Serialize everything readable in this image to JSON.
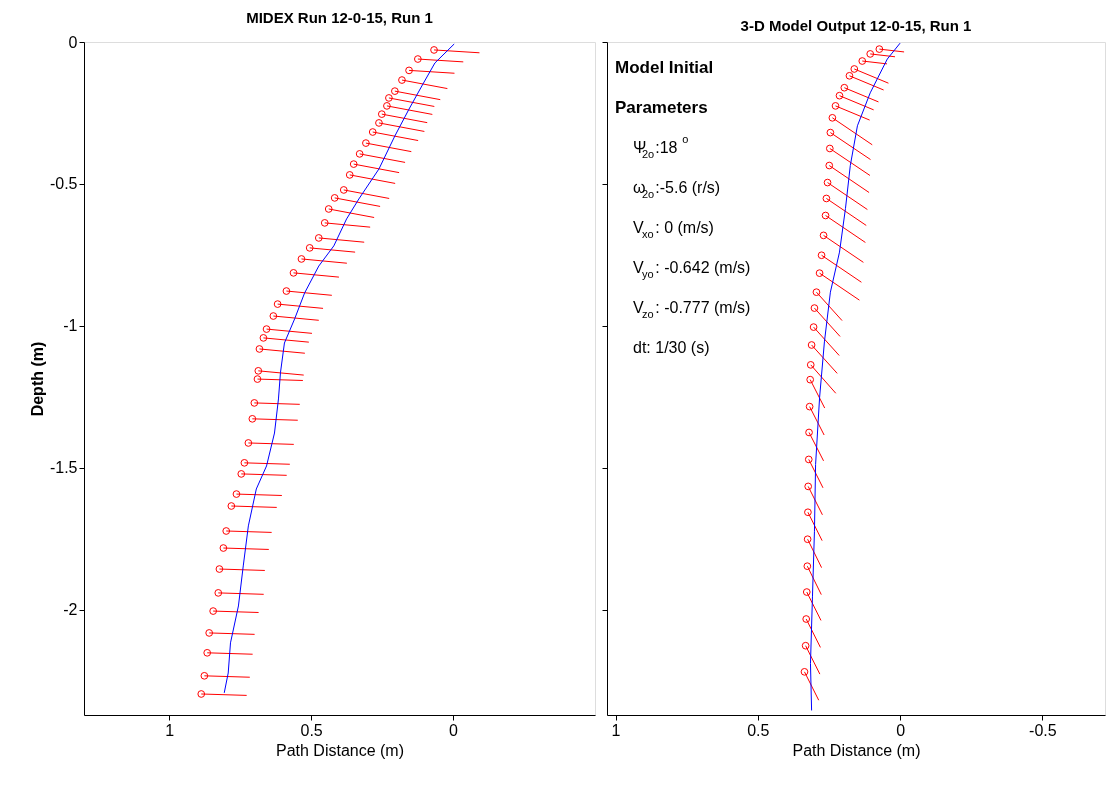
{
  "chart_data": [
    {
      "type": "line",
      "title": "MIDEX Run 12-0-15, Run 1",
      "xlabel": "Path Distance (m)",
      "ylabel": "Depth (m)",
      "xlim": [
        1.3,
        -0.5
      ],
      "xticks": [
        1,
        0.5,
        0
      ],
      "ylim": [
        -2.37,
        0
      ],
      "yticks": [
        0,
        -0.5,
        -1,
        -1.5,
        -2
      ],
      "grid": false,
      "series": [
        {
          "color": "#ff0000",
          "x": [
            0.067,
            -0.093,
            null,
            0.124,
            -0.036,
            null,
            0.155,
            -0.005,
            null,
            0.18,
            0.02,
            null,
            0.205,
            0.045,
            null,
            0.226,
            0.066,
            null,
            0.233,
            0.073,
            null,
            0.251,
            0.091,
            null,
            0.261,
            0.101,
            null,
            0.283,
            0.123,
            null,
            0.307,
            0.147,
            null,
            0.329,
            0.169,
            null,
            0.35,
            0.19,
            null,
            0.364,
            0.204,
            null,
            0.385,
            0.225,
            null,
            0.417,
            0.257,
            null,
            0.438,
            0.278,
            null,
            0.452,
            0.292,
            null,
            0.473,
            0.313,
            null,
            0.505,
            0.345,
            null,
            0.534,
            0.374,
            null,
            0.562,
            0.402,
            null,
            0.587,
            0.427,
            null,
            0.618,
            0.458,
            null,
            0.633,
            0.473,
            null,
            0.657,
            0.497,
            null,
            0.668,
            0.508,
            null,
            0.682,
            0.522,
            null,
            0.686,
            0.526,
            null,
            0.689,
            0.529,
            null,
            0.7,
            0.54,
            null,
            0.707,
            0.547,
            null,
            0.721,
            0.561,
            null,
            0.735,
            0.575,
            null,
            0.746,
            0.586,
            null,
            0.763,
            0.603,
            null,
            0.781,
            0.621,
            null,
            0.799,
            0.639,
            null,
            0.809,
            0.649,
            null,
            0.823,
            0.663,
            null,
            0.827,
            0.667,
            null,
            0.845,
            0.685,
            null,
            0.859,
            0.699,
            null,
            0.866,
            0.706,
            null,
            0.876,
            0.716,
            null,
            0.887,
            0.727
          ],
          "values": [
            -0.028,
            -0.038,
            null,
            -0.06,
            -0.07,
            null,
            -0.1,
            -0.11,
            null,
            -0.134,
            -0.164,
            null,
            -0.173,
            -0.203,
            null,
            -0.197,
            -0.227,
            null,
            -0.225,
            -0.255,
            null,
            -0.254,
            -0.284,
            null,
            -0.285,
            -0.315,
            null,
            -0.317,
            -0.347,
            null,
            -0.356,
            -0.386,
            null,
            -0.394,
            -0.424,
            null,
            -0.43,
            -0.46,
            null,
            -0.468,
            -0.498,
            null,
            -0.521,
            -0.551,
            null,
            -0.549,
            -0.579,
            null,
            -0.588,
            -0.618,
            null,
            -0.637,
            -0.652,
            null,
            -0.69,
            -0.705,
            null,
            -0.725,
            -0.74,
            null,
            -0.764,
            -0.779,
            null,
            -0.813,
            -0.828,
            null,
            -0.877,
            -0.892,
            null,
            -0.923,
            -0.938,
            null,
            -0.965,
            -0.98,
            null,
            -1.011,
            -1.026,
            null,
            -1.042,
            -1.057,
            null,
            -1.081,
            -1.096,
            null,
            -1.158,
            -1.173,
            null,
            -1.187,
            -1.192,
            null,
            -1.271,
            -1.276,
            null,
            -1.327,
            -1.332,
            null,
            -1.412,
            -1.417,
            null,
            -1.482,
            -1.487,
            null,
            -1.521,
            -1.526,
            null,
            -1.592,
            -1.597,
            null,
            -1.634,
            -1.639,
            null,
            -1.722,
            -1.727,
            null,
            -1.782,
            -1.787,
            null,
            -1.856,
            -1.861,
            null,
            -1.94,
            -1.945,
            null,
            -2.004,
            -2.009,
            null,
            -2.081,
            -2.086,
            null,
            -2.151,
            -2.156,
            null,
            -2.232,
            -2.237,
            null,
            -2.296,
            -2.301
          ]
        },
        {
          "type": "scatter",
          "marker": "circle",
          "color": "#ff0000",
          "x": [
            0.067,
            0.124,
            0.155,
            0.18,
            0.205,
            0.226,
            0.233,
            0.251,
            0.261,
            0.283,
            0.307,
            0.329,
            0.35,
            0.364,
            0.385,
            0.417,
            0.438,
            0.452,
            0.473,
            0.505,
            0.534,
            0.562,
            0.587,
            0.618,
            0.633,
            0.657,
            0.668,
            0.682,
            0.686,
            0.689,
            0.7,
            0.707,
            0.721,
            0.735,
            0.746,
            0.763,
            0.781,
            0.799,
            0.809,
            0.823,
            0.827,
            0.845,
            0.859,
            0.866,
            0.876,
            0.887
          ],
          "values": [
            -0.028,
            -0.06,
            -0.1,
            -0.134,
            -0.173,
            -0.197,
            -0.225,
            -0.254,
            -0.285,
            -0.317,
            -0.356,
            -0.394,
            -0.43,
            -0.468,
            -0.521,
            -0.549,
            -0.588,
            -0.637,
            -0.69,
            -0.725,
            -0.764,
            -0.813,
            -0.877,
            -0.923,
            -0.965,
            -1.011,
            -1.042,
            -1.081,
            -1.158,
            -1.187,
            -1.271,
            -1.327,
            -1.412,
            -1.482,
            -1.521,
            -1.592,
            -1.634,
            -1.722,
            -1.782,
            -1.856,
            -1.94,
            -2.004,
            -2.081,
            -2.151,
            -2.232,
            -2.296
          ]
        },
        {
          "color": "#0000ff",
          "x": [
            -0.004,
            0.064,
            0.11,
            0.155,
            0.205,
            0.261,
            0.332,
            0.375,
            0.42,
            0.473,
            0.523,
            0.558,
            0.594,
            0.608,
            0.615,
            0.629,
            0.657,
            0.693,
            0.721,
            0.739,
            0.756,
            0.784,
            0.792,
            0.806
          ],
          "values": [
            -0.007,
            -0.074,
            -0.155,
            -0.236,
            -0.331,
            -0.447,
            -0.553,
            -0.623,
            -0.718,
            -0.789,
            -0.884,
            -0.975,
            -1.06,
            -1.165,
            -1.257,
            -1.377,
            -1.493,
            -1.574,
            -1.704,
            -1.845,
            -1.986,
            -2.116,
            -2.222,
            -2.292
          ]
        }
      ]
    },
    {
      "type": "line",
      "title": "3-D Model Output 12-0-15, Run 1",
      "xlabel": "Path Distance (m)",
      "xlim": [
        1.03,
        -0.72
      ],
      "xticks": [
        1,
        0.5,
        0,
        -0.5
      ],
      "ylim": [
        -2.37,
        0
      ],
      "yticks": [
        0,
        -0.5,
        -1,
        -1.5,
        -2
      ],
      "tick_labels": "x",
      "grid": false,
      "annotations": [
        "Model Initial",
        "Parameters",
        "Ψ$_{2o}$:18$^{o}$",
        "ω$_{2o}$:-5.6 (r/s)",
        "V$_{xo}$: 0 (m/s)",
        "V$_{yo}$: -0.642 (m/s)",
        "V$_{zo}$: -0.777 (m/s)",
        "dt:  1/30 (s)"
      ],
      "series": [
        {
          "color": "#ff0000",
          "x": [
            0.073,
            -0.014,
            null,
            0.105,
            0.018,
            null,
            0.133,
            0.046,
            null,
            0.161,
            0.041,
            null,
            0.178,
            0.058,
            null,
            0.196,
            0.076,
            null,
            0.213,
            0.093,
            null,
            0.227,
            0.107,
            null,
            0.238,
            0.098,
            null,
            0.245,
            0.104,
            null,
            0.247,
            0.106,
            null,
            0.249,
            0.109,
            null,
            0.255,
            0.115,
            null,
            0.259,
            0.119,
            null,
            0.262,
            0.122,
            null,
            0.269,
            0.129,
            null,
            0.276,
            0.136,
            null,
            0.283,
            0.143,
            null,
            0.294,
            0.204,
            null,
            0.301,
            0.211,
            null,
            0.304,
            0.214,
            null,
            0.311,
            0.221,
            null,
            0.314,
            0.226
          ],
          "values": [
            -0.025,
            -0.035,
            null,
            -0.042,
            -0.052,
            null,
            -0.067,
            -0.077,
            null,
            -0.095,
            -0.145,
            null,
            -0.119,
            -0.169,
            null,
            -0.161,
            -0.211,
            null,
            -0.189,
            -0.239,
            null,
            -0.225,
            -0.275,
            null,
            -0.267,
            -0.362,
            null,
            -0.319,
            -0.414,
            null,
            -0.375,
            -0.47,
            null,
            -0.435,
            -0.53,
            null,
            -0.495,
            -0.59,
            null,
            -0.551,
            -0.646,
            null,
            -0.611,
            -0.706,
            null,
            -0.681,
            -0.776,
            null,
            -0.751,
            -0.846,
            null,
            -0.814,
            -0.909,
            null,
            -0.881,
            -0.981,
            null,
            -0.937,
            -1.037,
            null,
            -1.004,
            -1.104,
            null,
            -1.067,
            -1.167,
            null,
            -1.137,
            -1.237
          ]
        },
        {
          "color": "#ff0000",
          "x": [
            0.316,
            0.265
          ],
          "values": [
            -1.189,
            -1.289
          ]
        },
        {
          "color": "#ff0000",
          "x": [
            0.318,
            0.267
          ],
          "values": [
            -1.284,
            -1.384
          ]
        },
        {
          "color": "#ff0000",
          "x": [
            0.32,
            0.269
          ],
          "values": [
            -1.375,
            -1.475
          ]
        },
        {
          "color": "#ff0000",
          "x": [
            0.321,
            0.271
          ],
          "values": [
            -1.47,
            -1.57
          ]
        },
        {
          "color": "#ff0000",
          "x": [
            0.323,
            0.273
          ],
          "values": [
            -1.565,
            -1.665
          ]
        },
        {
          "color": "#ff0000",
          "x": [
            0.324,
            0.274
          ],
          "values": [
            -1.656,
            -1.756
          ]
        },
        {
          "color": "#ff0000",
          "x": [
            0.325,
            0.276
          ],
          "values": [
            -1.751,
            -1.851
          ]
        },
        {
          "color": "#ff0000",
          "x": [
            0.326,
            0.277
          ],
          "values": [
            -1.846,
            -1.946
          ]
        },
        {
          "color": "#ff0000",
          "x": [
            0.328,
            0.278
          ],
          "values": [
            -1.937,
            -2.037
          ]
        },
        {
          "color": "#ff0000",
          "x": [
            0.33,
            0.28
          ],
          "values": [
            -2.032,
            -2.132
          ]
        },
        {
          "color": "#ff0000",
          "x": [
            0.332,
            0.282
          ],
          "values": [
            -2.126,
            -2.226
          ]
        },
        {
          "color": "#ff0000",
          "x": [
            0.336,
            0.286
          ],
          "values": [
            -2.218,
            -2.318
          ]
        },
        {
          "type": "scatter",
          "marker": "circle",
          "color": "#ff0000",
          "x": [
            0.073,
            0.105,
            0.133,
            0.161,
            0.178,
            0.196,
            0.213,
            0.227,
            0.238,
            0.245,
            0.247,
            0.249,
            0.255,
            0.259,
            0.262,
            0.269,
            0.276,
            0.283,
            0.294,
            0.301,
            0.304,
            0.311,
            0.314,
            0.316,
            0.318,
            0.32,
            0.321,
            0.323,
            0.324,
            0.325,
            0.326,
            0.328,
            0.33,
            0.332,
            0.336
          ],
          "values": [
            -0.025,
            -0.042,
            -0.067,
            -0.095,
            -0.119,
            -0.161,
            -0.189,
            -0.225,
            -0.267,
            -0.319,
            -0.375,
            -0.435,
            -0.495,
            -0.551,
            -0.611,
            -0.681,
            -0.751,
            -0.814,
            -0.881,
            -0.937,
            -1.004,
            -1.067,
            -1.137,
            -1.189,
            -1.284,
            -1.375,
            -1.47,
            -1.565,
            -1.656,
            -1.751,
            -1.846,
            -1.937,
            -2.032,
            -2.126,
            -2.218
          ]
        },
        {
          "color": "#0000ff",
          "x": [
            0,
            0.045,
            0.105,
            0.15,
            0.175,
            0.192,
            0.213,
            0.245,
            0.266,
            0.283,
            0.297,
            0.301,
            0.308,
            0.315,
            0.311
          ],
          "values": [
            -0.004,
            -0.06,
            -0.179,
            -0.295,
            -0.435,
            -0.586,
            -0.74,
            -0.881,
            -1.056,
            -1.253,
            -1.488,
            -1.723,
            -1.954,
            -2.189,
            -2.354
          ]
        }
      ]
    }
  ]
}
